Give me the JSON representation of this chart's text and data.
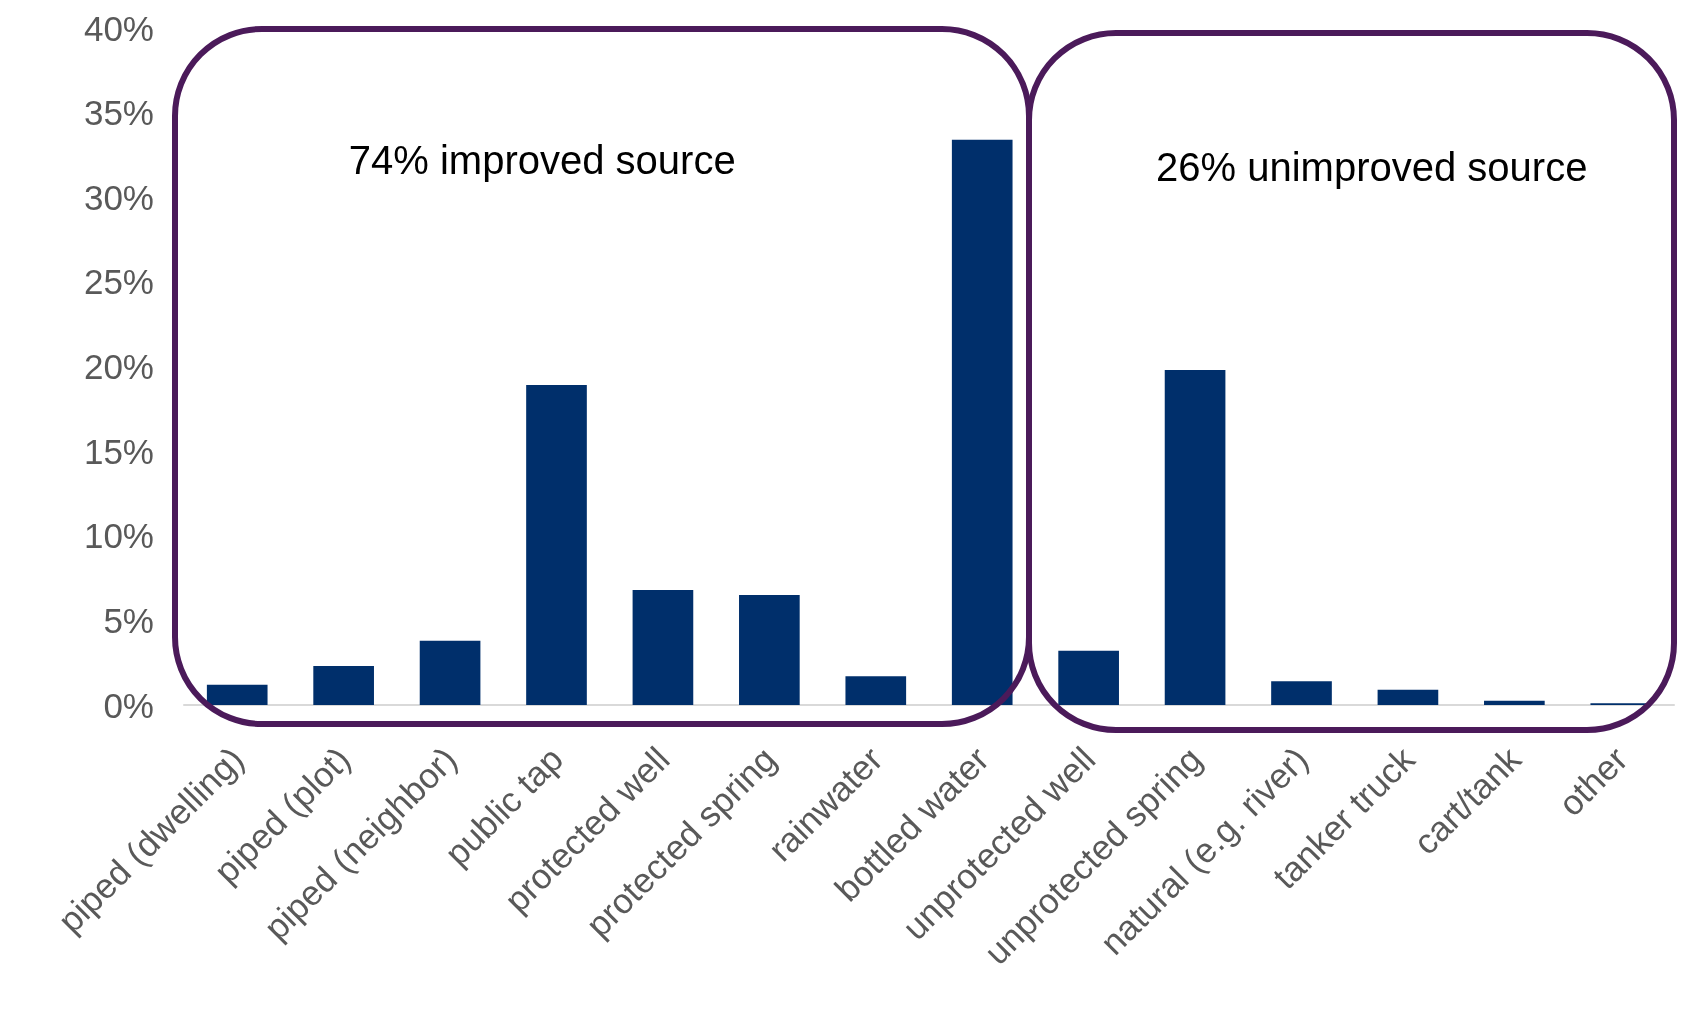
{
  "chart_data": {
    "type": "bar",
    "categories": [
      "piped (dwelling)",
      "piped (plot)",
      "piped (neighbor)",
      "public tap",
      "protected well",
      "protected spring",
      "rainwater",
      "bottled water",
      "unprotected well",
      "unprotected spring",
      "natural (e.g. river)",
      "tanker truck",
      "cart/tank",
      "other"
    ],
    "values": [
      1.2,
      2.3,
      3.8,
      18.9,
      6.8,
      6.5,
      1.7,
      33.4,
      3.2,
      19.8,
      1.4,
      0.9,
      0.25,
      0.1
    ],
    "color": "#002f6b",
    "ylim": [
      0,
      40
    ],
    "yticks": [
      {
        "value": 0,
        "label": "0%"
      },
      {
        "value": 5,
        "label": "5%"
      },
      {
        "value": 10,
        "label": "10%"
      },
      {
        "value": 15,
        "label": "15%"
      },
      {
        "value": 20,
        "label": "20%"
      },
      {
        "value": 25,
        "label": "25%"
      },
      {
        "value": 30,
        "label": "30%"
      },
      {
        "value": 35,
        "label": "35%"
      },
      {
        "value": 40,
        "label": "40%"
      }
    ],
    "grid": false,
    "annotations": [
      "74% improved source",
      "26% unimproved source"
    ]
  }
}
